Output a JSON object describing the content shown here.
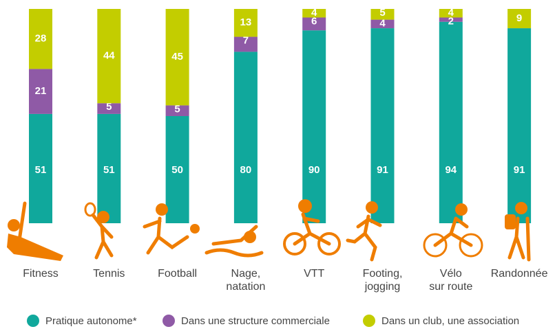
{
  "chart_data": {
    "type": "stacked_bar",
    "categories": [
      "Fitness",
      "Tennis",
      "Football",
      "Nage,\nnatation",
      "VTT",
      "Footing,\njogging",
      "Vélo\nsur route",
      "Randonnée"
    ],
    "series": [
      {
        "name": "Pratique autonome*",
        "color": "#10a89c",
        "values": [
          51,
          51,
          50,
          80,
          90,
          91,
          94,
          91
        ]
      },
      {
        "name": "Dans une structure commerciale",
        "color": "#8f5aa6",
        "values": [
          21,
          5,
          5,
          7,
          6,
          4,
          2,
          null
        ]
      },
      {
        "name": "Dans un club, une association",
        "color": "#c3cd00",
        "values": [
          28,
          44,
          45,
          13,
          4,
          5,
          4,
          9
        ]
      }
    ],
    "ylim": [
      0,
      100
    ]
  }
}
